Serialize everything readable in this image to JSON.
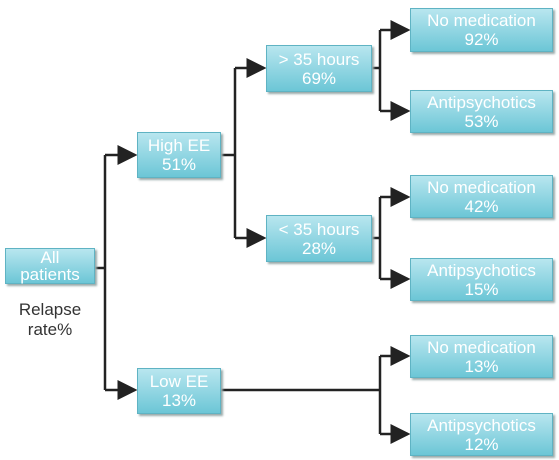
{
  "nodes": [
    {
      "label": "All patients"
    },
    {
      "label": "High EE",
      "value": "51%"
    },
    {
      "label": "Low EE",
      "value": "13%"
    },
    {
      "label": "> 35 hours",
      "value": "69%"
    },
    {
      "label": "< 35 hours",
      "value": "28%"
    },
    {
      "label": "No medication",
      "value": "92%"
    },
    {
      "label": "Antipsychotics",
      "value": "53%"
    },
    {
      "label": "No medication",
      "value": "42%"
    },
    {
      "label": "Antipsychotics",
      "value": "15%"
    },
    {
      "label": "No medication",
      "value": "13%"
    },
    {
      "label": "Antipsychotics",
      "value": "12%"
    }
  ],
  "note": "Relapse rate%"
}
